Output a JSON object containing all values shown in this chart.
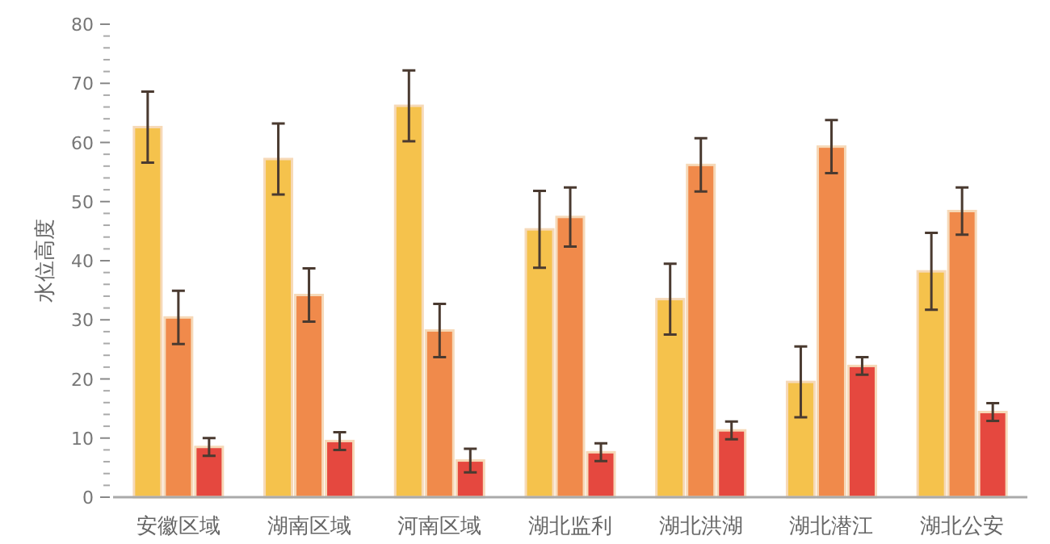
{
  "chart_data": {
    "type": "bar",
    "ylabel": "水位高度",
    "categories": [
      "安徽区域",
      "湖南区域",
      "河南区域",
      "湖北监利",
      "湖北洪湖",
      "湖北潜江",
      "湖北公安"
    ],
    "series": [
      {
        "color": "#f5c24c",
        "values": [
          62.6,
          57.2,
          66.2,
          45.3,
          33.5,
          19.5,
          38.2
        ],
        "errors": [
          6,
          6,
          6,
          6.5,
          6,
          6,
          6.5
        ]
      },
      {
        "color": "#f08a4b",
        "values": [
          30.4,
          34.2,
          28.2,
          47.4,
          56.2,
          59.3,
          48.4
        ],
        "errors": [
          4.5,
          4.5,
          4.5,
          5,
          4.5,
          4.5,
          4
        ]
      },
      {
        "color": "#e5483f",
        "values": [
          8.5,
          9.5,
          6.2,
          7.6,
          11.3,
          22.2,
          14.4
        ],
        "errors": [
          1.5,
          1.5,
          2,
          1.5,
          1.5,
          1.5,
          1.5
        ]
      }
    ],
    "ylim": [
      0,
      80
    ],
    "yticks": [
      0,
      10,
      20,
      30,
      40,
      50,
      60,
      70,
      80
    ]
  }
}
